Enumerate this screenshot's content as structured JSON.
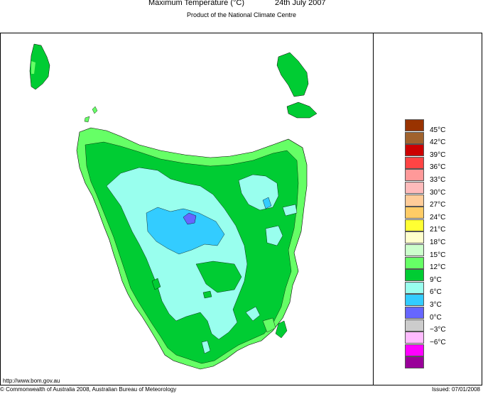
{
  "header": {
    "title": "Maximum Temperature (°C)",
    "date": "24th July 2007",
    "subtitle": "Product of the National Climate Centre"
  },
  "legend": {
    "items": [
      {
        "label": "45°C",
        "color": "#993300"
      },
      {
        "label": "42°C",
        "color": "#a0622d"
      },
      {
        "label": "39°C",
        "color": "#cc0000"
      },
      {
        "label": "36°C",
        "color": "#ff4444"
      },
      {
        "label": "33°C",
        "color": "#ff9999"
      },
      {
        "label": "30°C",
        "color": "#ffbbbb"
      },
      {
        "label": "27°C",
        "color": "#ffcc99"
      },
      {
        "label": "24°C",
        "color": "#ffcc66"
      },
      {
        "label": "21°C",
        "color": "#ffff33"
      },
      {
        "label": "18°C",
        "color": "#ffffcc"
      },
      {
        "label": "15°C",
        "color": "#ccffcc"
      },
      {
        "label": "12°C",
        "color": "#66ff66"
      },
      {
        "label": "9°C",
        "color": "#00cc33"
      },
      {
        "label": "6°C",
        "color": "#99ffee"
      },
      {
        "label": "3°C",
        "color": "#33ccff"
      },
      {
        "label": "0°C",
        "color": "#6666ff"
      },
      {
        "label": "−3°C",
        "color": "#cccccc"
      },
      {
        "label": "−6°C",
        "color": "#ffbbff"
      },
      {
        "label": "",
        "color": "#ff00ff"
      },
      {
        "label": "",
        "color": "#990099"
      }
    ]
  },
  "map": {
    "region": "Tasmania",
    "fill_colors": {
      "land_main": "#00cc33",
      "coast_light": "#66ff66",
      "cold": "#99ffee",
      "colder": "#33ccff",
      "coldest": "#6666ff"
    }
  },
  "footer": {
    "url": "http://www.bom.gov.au",
    "copyright": "© Commonwealth of Australia 2008, Australian Bureau of Meteorology",
    "issued": "Issued: 07/01/2008"
  }
}
